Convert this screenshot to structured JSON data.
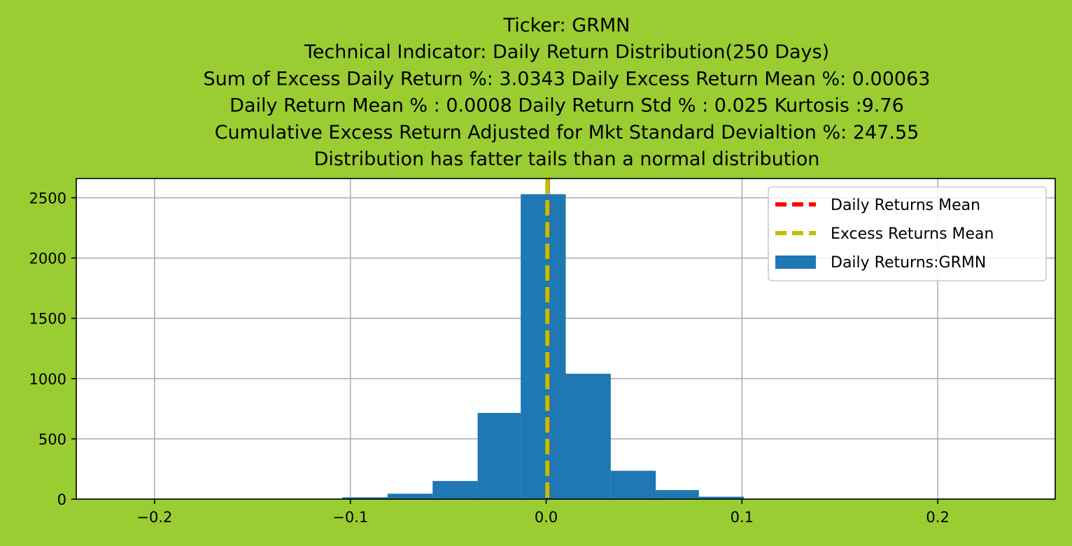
{
  "chart_data": {
    "type": "bar",
    "title_lines": [
      "Ticker: GRMN",
      "Technical Indicator: Daily Return Distribution(250 Days)",
      "    Sum of Excess Daily Return %: 3.0343   Daily Excess Return Mean %: 0.00063",
      "  Daily Return Mean % : 0.0008    Daily Return Std % : 0.025  Kurtosis :9.76",
      "Cumulative Excess Return Adjusted for Mkt Standard Devialtion %: 247.55 ",
      "Distribution has fatter tails than a normal distribution"
    ],
    "xlim": [
      -0.24,
      0.26
    ],
    "ylim": [
      0,
      2660
    ],
    "x_ticks": [
      -0.2,
      -0.1,
      0.0,
      0.1,
      0.2
    ],
    "x_tick_labels": [
      "−0.2",
      "−0.1",
      "0.0",
      "0.1",
      "0.2"
    ],
    "y_ticks": [
      0,
      500,
      1000,
      1500,
      2000,
      2500
    ],
    "y_tick_labels": [
      "0",
      "500",
      "1000",
      "1500",
      "2000",
      "2500"
    ],
    "grid": true,
    "bins": [
      {
        "x0": -0.104,
        "x1": -0.081,
        "count": 15
      },
      {
        "x0": -0.081,
        "x1": -0.058,
        "count": 45
      },
      {
        "x0": -0.058,
        "x1": -0.035,
        "count": 150
      },
      {
        "x0": -0.035,
        "x1": -0.013,
        "count": 715
      },
      {
        "x0": -0.013,
        "x1": 0.01,
        "count": 2530
      },
      {
        "x0": 0.01,
        "x1": 0.033,
        "count": 1040
      },
      {
        "x0": 0.033,
        "x1": 0.056,
        "count": 235
      },
      {
        "x0": 0.056,
        "x1": 0.078,
        "count": 75
      },
      {
        "x0": 0.078,
        "x1": 0.101,
        "count": 20
      }
    ],
    "vlines": [
      {
        "name": "Daily Returns Mean",
        "x": 0.0008,
        "color": "#ff0000"
      },
      {
        "name": "Excess Returns Mean",
        "x": 0.00063,
        "color": "#bfbf00"
      }
    ],
    "bar_series_name": "Daily Returns:GRMN",
    "bar_color": "#1f77b4",
    "legend_position": "top-right"
  }
}
